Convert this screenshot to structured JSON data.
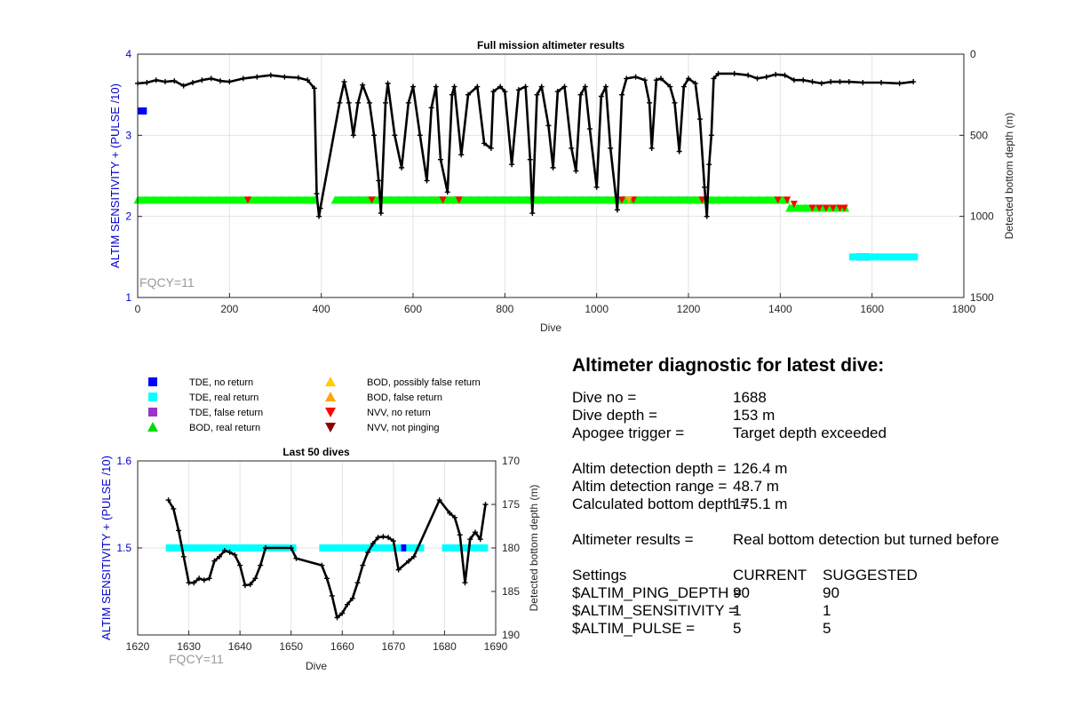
{
  "chart_data": [
    {
      "type": "scatter",
      "title": "Full mission altimeter results",
      "xlabel": "Dive",
      "ylabel": "ALTIM SENSITIVITY + (PULSE /10)",
      "y2label": "Detected bottom depth (m)",
      "xlim": [
        0,
        1800
      ],
      "ylim": [
        1,
        4
      ],
      "y2lim": [
        1500,
        0
      ],
      "x_ticks": [
        "0",
        "200",
        "400",
        "600",
        "800",
        "1000",
        "1200",
        "1400",
        "1600",
        "1800"
      ],
      "y_ticks": [
        "1",
        "2",
        "3",
        "4"
      ],
      "y2_ticks": [
        "0",
        "500",
        "1000",
        "1500"
      ],
      "annotation": "FQCY=11",
      "grid": true,
      "series": [
        {
          "name": "TDE, no return",
          "color": "#0000ff",
          "segments": [
            [
              0,
              20,
              3.3
            ],
            [
              435,
              1240,
              2.2
            ],
            [
              1565,
              1595,
              1.5
            ]
          ]
        },
        {
          "name": "TDE, real return",
          "color": "#00ffff",
          "segments": [
            [
              1550,
              1700,
              1.5
            ]
          ]
        },
        {
          "name": "BOD, real return",
          "color": "#00ff00",
          "segments": [
            [
              0,
              390,
              2.2
            ],
            [
              430,
              1420,
              2.2
            ],
            [
              1420,
              1545,
              2.1
            ]
          ]
        },
        {
          "name": "NVV, no return",
          "color": "#ff0000",
          "points": [
            [
              240,
              2.2
            ],
            [
              510,
              2.2
            ],
            [
              665,
              2.2
            ],
            [
              700,
              2.2
            ],
            [
              1055,
              2.2
            ],
            [
              1080,
              2.2
            ],
            [
              1230,
              2.2
            ],
            [
              1395,
              2.2
            ],
            [
              1415,
              2.2
            ],
            [
              1430,
              2.15
            ],
            [
              1470,
              2.1
            ],
            [
              1485,
              2.1
            ],
            [
              1500,
              2.1
            ],
            [
              1515,
              2.1
            ],
            [
              1530,
              2.1
            ],
            [
              1540,
              2.1
            ]
          ]
        },
        {
          "name": "BOD, false return",
          "color": "#ffa500",
          "points": [
            [
              1070,
              2.2
            ]
          ]
        },
        {
          "name": "Detected bottom depth",
          "color": "#000000",
          "axis": "right",
          "points": [
            [
              0,
              180
            ],
            [
              20,
              175
            ],
            [
              40,
              160
            ],
            [
              60,
              170
            ],
            [
              80,
              165
            ],
            [
              100,
              195
            ],
            [
              120,
              175
            ],
            [
              140,
              160
            ],
            [
              160,
              150
            ],
            [
              180,
              165
            ],
            [
              200,
              170
            ],
            [
              230,
              150
            ],
            [
              260,
              140
            ],
            [
              290,
              130
            ],
            [
              320,
              140
            ],
            [
              350,
              145
            ],
            [
              370,
              160
            ],
            [
              385,
              210
            ],
            [
              390,
              860
            ],
            [
              395,
              1000
            ],
            [
              398,
              950
            ],
            [
              440,
              300
            ],
            [
              450,
              170
            ],
            [
              460,
              300
            ],
            [
              470,
              500
            ],
            [
              480,
              300
            ],
            [
              490,
              190
            ],
            [
              505,
              300
            ],
            [
              515,
              500
            ],
            [
              525,
              780
            ],
            [
              530,
              980
            ],
            [
              540,
              300
            ],
            [
              545,
              180
            ],
            [
              560,
              500
            ],
            [
              575,
              700
            ],
            [
              590,
              300
            ],
            [
              600,
              200
            ],
            [
              615,
              500
            ],
            [
              630,
              780
            ],
            [
              640,
              330
            ],
            [
              650,
              200
            ],
            [
              660,
              650
            ],
            [
              675,
              850
            ],
            [
              685,
              250
            ],
            [
              690,
              200
            ],
            [
              705,
              620
            ],
            [
              720,
              250
            ],
            [
              740,
              200
            ],
            [
              755,
              550
            ],
            [
              770,
              580
            ],
            [
              775,
              230
            ],
            [
              790,
              200
            ],
            [
              800,
              230
            ],
            [
              815,
              680
            ],
            [
              830,
              220
            ],
            [
              845,
              200
            ],
            [
              855,
              650
            ],
            [
              860,
              980
            ],
            [
              870,
              250
            ],
            [
              880,
              200
            ],
            [
              895,
              440
            ],
            [
              905,
              700
            ],
            [
              915,
              230
            ],
            [
              930,
              200
            ],
            [
              945,
              580
            ],
            [
              955,
              720
            ],
            [
              965,
              250
            ],
            [
              975,
              200
            ],
            [
              985,
              460
            ],
            [
              1000,
              820
            ],
            [
              1010,
              260
            ],
            [
              1020,
              200
            ],
            [
              1030,
              580
            ],
            [
              1045,
              960
            ],
            [
              1055,
              250
            ],
            [
              1065,
              150
            ],
            [
              1085,
              140
            ],
            [
              1105,
              160
            ],
            [
              1115,
              300
            ],
            [
              1120,
              580
            ],
            [
              1130,
              160
            ],
            [
              1140,
              150
            ],
            [
              1160,
              200
            ],
            [
              1170,
              300
            ],
            [
              1180,
              600
            ],
            [
              1190,
              200
            ],
            [
              1200,
              150
            ],
            [
              1215,
              180
            ],
            [
              1225,
              400
            ],
            [
              1235,
              820
            ],
            [
              1240,
              1000
            ],
            [
              1245,
              680
            ],
            [
              1250,
              500
            ],
            [
              1255,
              150
            ],
            [
              1265,
              120
            ],
            [
              1300,
              120
            ],
            [
              1330,
              130
            ],
            [
              1350,
              150
            ],
            [
              1370,
              140
            ],
            [
              1390,
              125
            ],
            [
              1410,
              130
            ],
            [
              1430,
              160
            ],
            [
              1450,
              160
            ],
            [
              1470,
              170
            ],
            [
              1490,
              180
            ],
            [
              1510,
              170
            ],
            [
              1530,
              170
            ],
            [
              1550,
              170
            ],
            [
              1580,
              175
            ],
            [
              1620,
              175
            ],
            [
              1660,
              180
            ],
            [
              1690,
              170
            ]
          ]
        }
      ]
    },
    {
      "type": "scatter",
      "title": "Last 50 dives",
      "xlabel": "Dive",
      "ylabel": "ALTIM SENSITIVITY + (PULSE /10)",
      "y2label": "Detected bottom depth (m)",
      "xlim": [
        1620,
        1690
      ],
      "ylim": [
        1.4,
        1.6
      ],
      "y2lim": [
        190,
        170
      ],
      "x_ticks": [
        "1620",
        "1630",
        "1640",
        "1650",
        "1660",
        "1670",
        "1680",
        "1690"
      ],
      "y_ticks": [
        "1.5",
        "1.6"
      ],
      "y2_ticks": [
        "170",
        "175",
        "180",
        "185",
        "190"
      ],
      "annotation": "FQCY=11",
      "grid": true,
      "series": [
        {
          "name": "TDE, real return",
          "color": "#00ffff",
          "segments": [
            [
              1625.5,
              1651,
              1.5
            ],
            [
              1655.5,
              1676,
              1.5
            ],
            [
              1679.5,
              1688.5,
              1.5
            ]
          ]
        },
        {
          "name": "TDE, no return",
          "color": "#0000ff",
          "segments": [
            [
              1671.5,
              1672.5,
              1.5
            ]
          ]
        },
        {
          "name": "Detected bottom depth",
          "color": "#000000",
          "axis": "right",
          "points": [
            [
              1626,
              174.5
            ],
            [
              1627,
              175.5
            ],
            [
              1628,
              178
            ],
            [
              1629,
              181
            ],
            [
              1630,
              184
            ],
            [
              1631,
              184
            ],
            [
              1632,
              183.5
            ],
            [
              1633,
              183.7
            ],
            [
              1634,
              183.5
            ],
            [
              1635,
              181.5
            ],
            [
              1636,
              181
            ],
            [
              1637,
              180.3
            ],
            [
              1638,
              180.5
            ],
            [
              1639,
              180.8
            ],
            [
              1640,
              182
            ],
            [
              1641,
              184.3
            ],
            [
              1642,
              184.2
            ],
            [
              1643,
              183.5
            ],
            [
              1644,
              182
            ],
            [
              1645,
              180
            ],
            [
              1650,
              180
            ],
            [
              1651,
              181.2
            ],
            [
              1656,
              182
            ],
            [
              1657,
              183.5
            ],
            [
              1658,
              185.5
            ],
            [
              1659,
              188
            ],
            [
              1660,
              187.5
            ],
            [
              1661,
              186.5
            ],
            [
              1662,
              185.8
            ],
            [
              1663,
              184
            ],
            [
              1664,
              182
            ],
            [
              1665,
              180.5
            ],
            [
              1666,
              179.5
            ],
            [
              1667,
              178.8
            ],
            [
              1668,
              178.7
            ],
            [
              1669,
              178.8
            ],
            [
              1670,
              179.2
            ],
            [
              1671,
              182.5
            ],
            [
              1673,
              181.5
            ],
            [
              1674,
              181
            ],
            [
              1679,
              174.5
            ],
            [
              1681,
              176
            ],
            [
              1682,
              176.5
            ],
            [
              1683,
              178.5
            ],
            [
              1684,
              184
            ],
            [
              1685,
              179
            ],
            [
              1686,
              178.2
            ],
            [
              1687,
              179
            ],
            [
              1688,
              175
            ]
          ]
        }
      ]
    }
  ],
  "legend": [
    {
      "label": "TDE, no return",
      "color": "#0000ff",
      "marker": "square"
    },
    {
      "label": "TDE, real return",
      "color": "#00ffff",
      "marker": "square"
    },
    {
      "label": "TDE, false return",
      "color": "#9933cc",
      "marker": "square"
    },
    {
      "label": "BOD, real return",
      "color": "#00dd00",
      "marker": "triangle-up"
    },
    {
      "label": "BOD, possibly false return",
      "color": "#ffcc00",
      "marker": "triangle-up"
    },
    {
      "label": "BOD, false return",
      "color": "#ffa500",
      "marker": "triangle-up"
    },
    {
      "label": "NVV, no return",
      "color": "#ff0000",
      "marker": "triangle-down"
    },
    {
      "label": "NVV, not pinging",
      "color": "#8b0000",
      "marker": "triangle-down"
    }
  ],
  "diagnostic": {
    "title": "Altimeter diagnostic for latest dive:",
    "dive_no_label": "Dive no =",
    "dive_no": "1688",
    "dive_depth_label": "Dive depth =",
    "dive_depth": "153 m",
    "apogee_label": "Apogee trigger =",
    "apogee": "Target depth exceeded",
    "detect_depth_label": "Altim detection depth =",
    "detect_depth": "126.4 m",
    "detect_range_label": "Altim detection range =",
    "detect_range": "48.7 m",
    "calc_bottom_label": "Calculated bottom depth =",
    "calc_bottom": "175.1 m",
    "results_label": "Altimeter results =",
    "results": "Real bottom detection but turned before",
    "settings_label": "Settings",
    "current_label": "CURRENT",
    "suggested_label": "SUGGESTED",
    "ping_depth_label": "$ALTIM_PING_DEPTH =",
    "ping_depth_current": "90",
    "ping_depth_suggested": "90",
    "sensitivity_label": "$ALTIM_SENSITIVITY =",
    "sensitivity_current": "1",
    "sensitivity_suggested": "1",
    "pulse_label": "$ALTIM_PULSE =",
    "pulse_current": "5",
    "pulse_suggested": "5"
  }
}
